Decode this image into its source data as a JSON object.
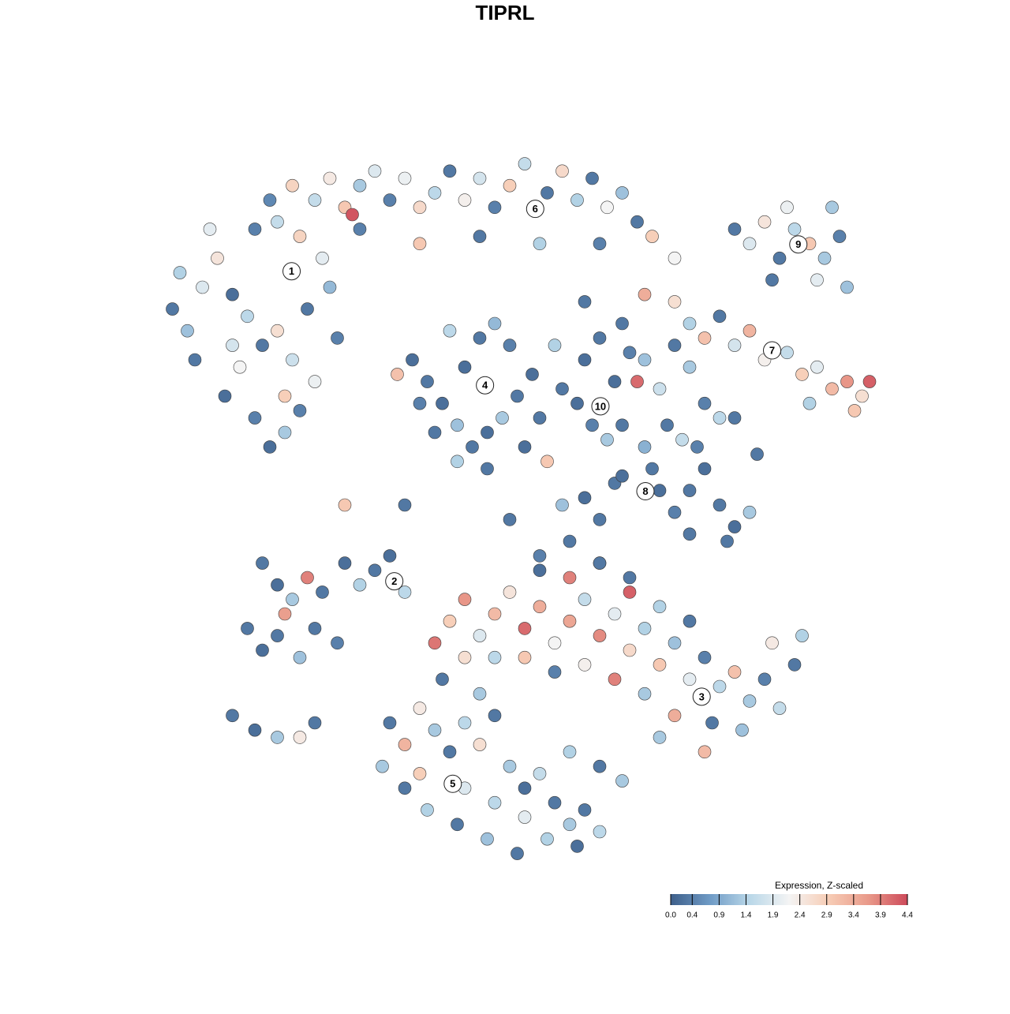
{
  "chart_data": {
    "type": "scatter",
    "title": "TIPRL",
    "xlim": [
      0,
      100
    ],
    "ylim": [
      0,
      100
    ],
    "edgecolor": "#3a3a3a",
    "points": [
      [
        5,
        74,
        1.2
      ],
      [
        3,
        77,
        0.3
      ],
      [
        7,
        80,
        1.9
      ],
      [
        9,
        84,
        2.5
      ],
      [
        11,
        79,
        0.2
      ],
      [
        13,
        76,
        1.5
      ],
      [
        15,
        72,
        0.3
      ],
      [
        12,
        69,
        2.2
      ],
      [
        10,
        65,
        0.2
      ],
      [
        14,
        62,
        0.4
      ],
      [
        16,
        58,
        0.2
      ],
      [
        18,
        60,
        1.3
      ],
      [
        20,
        63,
        0.4
      ],
      [
        22,
        67,
        2.1
      ],
      [
        19,
        70,
        1.7
      ],
      [
        17,
        74,
        2.6
      ],
      [
        21,
        77,
        0.3
      ],
      [
        24,
        80,
        1.1
      ],
      [
        23,
        84,
        2.0
      ],
      [
        20,
        87,
        2.8
      ],
      [
        17,
        89,
        1.6
      ],
      [
        14,
        88,
        0.4
      ],
      [
        8,
        88,
        2.0
      ],
      [
        4,
        82,
        1.4
      ],
      [
        6,
        70,
        0.3
      ],
      [
        25,
        73,
        0.4
      ],
      [
        18,
        65,
        2.9
      ],
      [
        11,
        72,
        1.8
      ],
      [
        16,
        92,
        0.5
      ],
      [
        19,
        94,
        2.8
      ],
      [
        22,
        92,
        1.6
      ],
      [
        24,
        95,
        2.4
      ],
      [
        26,
        91,
        3.0
      ],
      [
        28,
        94,
        1.3
      ],
      [
        30,
        96,
        1.9
      ],
      [
        32,
        92,
        0.4
      ],
      [
        34,
        95,
        2.1
      ],
      [
        36,
        91,
        2.7
      ],
      [
        38,
        93,
        1.5
      ],
      [
        40,
        96,
        0.3
      ],
      [
        42,
        92,
        2.3
      ],
      [
        44,
        95,
        1.8
      ],
      [
        46,
        91,
        0.4
      ],
      [
        48,
        94,
        2.9
      ],
      [
        50,
        97,
        1.6
      ],
      [
        53,
        93,
        0.3
      ],
      [
        55,
        96,
        2.7
      ],
      [
        57,
        92,
        1.4
      ],
      [
        59,
        95,
        0.3
      ],
      [
        61,
        91,
        2.2
      ],
      [
        63,
        93,
        1.2
      ],
      [
        65,
        89,
        0.3
      ],
      [
        67,
        87,
        2.9
      ],
      [
        28,
        88,
        0.4
      ],
      [
        36,
        86,
        3.0
      ],
      [
        44,
        87,
        0.3
      ],
      [
        52,
        86,
        1.4
      ],
      [
        60,
        86,
        0.4
      ],
      [
        27,
        90,
        4.3
      ],
      [
        78,
        88,
        0.3
      ],
      [
        80,
        86,
        1.9
      ],
      [
        82,
        89,
        2.5
      ],
      [
        84,
        84,
        0.3
      ],
      [
        86,
        88,
        1.5
      ],
      [
        88,
        86,
        3.0
      ],
      [
        90,
        84,
        1.3
      ],
      [
        92,
        87,
        0.4
      ],
      [
        89,
        81,
        2.0
      ],
      [
        83,
        81,
        0.3
      ],
      [
        93,
        80,
        1.2
      ],
      [
        85,
        91,
        2.1
      ],
      [
        91,
        91,
        1.3
      ],
      [
        70,
        78,
        2.6
      ],
      [
        72,
        75,
        1.4
      ],
      [
        74,
        73,
        3.1
      ],
      [
        76,
        76,
        0.3
      ],
      [
        78,
        72,
        1.8
      ],
      [
        80,
        74,
        3.3
      ],
      [
        82,
        70,
        2.3
      ],
      [
        85,
        71,
        1.6
      ],
      [
        87,
        68,
        2.9
      ],
      [
        89,
        69,
        2.0
      ],
      [
        91,
        66,
        3.2
      ],
      [
        93,
        67,
        3.7
      ],
      [
        95,
        65,
        2.6
      ],
      [
        96,
        67,
        4.2
      ],
      [
        94,
        63,
        3.0
      ],
      [
        88,
        64,
        1.4
      ],
      [
        70,
        72,
        0.3
      ],
      [
        72,
        69,
        1.3
      ],
      [
        74,
        64,
        0.4
      ],
      [
        76,
        62,
        1.5
      ],
      [
        78,
        62,
        0.3
      ],
      [
        68,
        66,
        1.7
      ],
      [
        71,
        59,
        1.6
      ],
      [
        66,
        79,
        3.4
      ],
      [
        35,
        70,
        0.2
      ],
      [
        37,
        67,
        0.3
      ],
      [
        39,
        64,
        0.2
      ],
      [
        41,
        61,
        1.2
      ],
      [
        43,
        58,
        0.3
      ],
      [
        45,
        60,
        0.2
      ],
      [
        47,
        62,
        1.3
      ],
      [
        49,
        65,
        0.3
      ],
      [
        51,
        68,
        0.2
      ],
      [
        48,
        72,
        0.4
      ],
      [
        46,
        75,
        1.1
      ],
      [
        44,
        73,
        0.3
      ],
      [
        42,
        69,
        0.2
      ],
      [
        40,
        74,
        1.5
      ],
      [
        38,
        60,
        0.3
      ],
      [
        45,
        55,
        0.3
      ],
      [
        41,
        56,
        1.4
      ],
      [
        50,
        58,
        0.2
      ],
      [
        36,
        64,
        0.4
      ],
      [
        33,
        68,
        3.1
      ],
      [
        52,
        62,
        0.3
      ],
      [
        55,
        66,
        0.3
      ],
      [
        57,
        64,
        0.2
      ],
      [
        59,
        61,
        0.4
      ],
      [
        61,
        59,
        1.3
      ],
      [
        63,
        61,
        0.3
      ],
      [
        62,
        67,
        0.2
      ],
      [
        64,
        71,
        0.4
      ],
      [
        66,
        70,
        1.2
      ],
      [
        63,
        75,
        0.3
      ],
      [
        58,
        70,
        0.2
      ],
      [
        54,
        72,
        1.4
      ],
      [
        60,
        73,
        0.3
      ],
      [
        65,
        67,
        4.1
      ],
      [
        66,
        58,
        1.0
      ],
      [
        67,
        55,
        0.3
      ],
      [
        68,
        52,
        0.2
      ],
      [
        70,
        49,
        0.4
      ],
      [
        72,
        52,
        0.3
      ],
      [
        74,
        55,
        0.2
      ],
      [
        76,
        50,
        0.3
      ],
      [
        78,
        47,
        0.2
      ],
      [
        80,
        49,
        1.3
      ],
      [
        77,
        45,
        0.3
      ],
      [
        72,
        46,
        0.3
      ],
      [
        62,
        53,
        0.3
      ],
      [
        58,
        51,
        0.2
      ],
      [
        55,
        50,
        1.2
      ],
      [
        60,
        48,
        0.3
      ],
      [
        63,
        54,
        0.2
      ],
      [
        69,
        61,
        0.3
      ],
      [
        73,
        58,
        0.4
      ],
      [
        81,
        57,
        0.3
      ],
      [
        56,
        45,
        0.3
      ],
      [
        52,
        41,
        0.2
      ],
      [
        60,
        42,
        1.4
      ],
      [
        64,
        40,
        0.3
      ],
      [
        15,
        42,
        0.3
      ],
      [
        17,
        39,
        0.2
      ],
      [
        19,
        37,
        1.3
      ],
      [
        21,
        40,
        3.9
      ],
      [
        23,
        38,
        0.3
      ],
      [
        26,
        42,
        0.2
      ],
      [
        28,
        39,
        1.4
      ],
      [
        30,
        41,
        0.3
      ],
      [
        32,
        43,
        0.2
      ],
      [
        34,
        38,
        1.5
      ],
      [
        13,
        33,
        0.3
      ],
      [
        15,
        30,
        0.2
      ],
      [
        17,
        32,
        0.3
      ],
      [
        20,
        29,
        1.2
      ],
      [
        22,
        33,
        0.3
      ],
      [
        25,
        31,
        0.4
      ],
      [
        11,
        21,
        0.3
      ],
      [
        14,
        19,
        0.2
      ],
      [
        17,
        18,
        1.3
      ],
      [
        20,
        18,
        2.4
      ],
      [
        22,
        20,
        0.3
      ],
      [
        18,
        35,
        3.6
      ],
      [
        40,
        34,
        2.9
      ],
      [
        42,
        37,
        3.7
      ],
      [
        44,
        32,
        1.9
      ],
      [
        46,
        35,
        3.2
      ],
      [
        48,
        38,
        2.5
      ],
      [
        50,
        33,
        4.1
      ],
      [
        52,
        36,
        3.4
      ],
      [
        54,
        31,
        2.2
      ],
      [
        56,
        34,
        3.5
      ],
      [
        58,
        37,
        1.6
      ],
      [
        60,
        32,
        3.8
      ],
      [
        62,
        35,
        2.0
      ],
      [
        64,
        30,
        2.7
      ],
      [
        66,
        33,
        1.4
      ],
      [
        68,
        28,
        3.0
      ],
      [
        70,
        31,
        1.2
      ],
      [
        72,
        26,
        2.0
      ],
      [
        74,
        29,
        0.4
      ],
      [
        76,
        25,
        1.5
      ],
      [
        78,
        27,
        3.1
      ],
      [
        80,
        23,
        1.3
      ],
      [
        82,
        26,
        0.4
      ],
      [
        84,
        22,
        1.6
      ],
      [
        86,
        28,
        0.3
      ],
      [
        87,
        32,
        1.4
      ],
      [
        83,
        31,
        2.4
      ],
      [
        79,
        19,
        1.2
      ],
      [
        75,
        20,
        0.3
      ],
      [
        70,
        21,
        3.4
      ],
      [
        66,
        24,
        1.3
      ],
      [
        62,
        26,
        3.9
      ],
      [
        58,
        28,
        2.3
      ],
      [
        54,
        27,
        0.4
      ],
      [
        50,
        29,
        3.0
      ],
      [
        46,
        29,
        1.5
      ],
      [
        42,
        29,
        2.6
      ],
      [
        38,
        31,
        4.0
      ],
      [
        56,
        40,
        3.9
      ],
      [
        64,
        38,
        4.2
      ],
      [
        60,
        42,
        0.3
      ],
      [
        52,
        43,
        0.4
      ],
      [
        68,
        36,
        1.4
      ],
      [
        72,
        34,
        0.3
      ],
      [
        74,
        16,
        3.2
      ],
      [
        68,
        18,
        1.3
      ],
      [
        32,
        20,
        0.3
      ],
      [
        34,
        17,
        3.3
      ],
      [
        36,
        22,
        2.4
      ],
      [
        38,
        19,
        1.3
      ],
      [
        40,
        16,
        0.3
      ],
      [
        42,
        20,
        1.5
      ],
      [
        44,
        17,
        2.6
      ],
      [
        46,
        21,
        0.3
      ],
      [
        48,
        14,
        1.3
      ],
      [
        50,
        11,
        0.2
      ],
      [
        52,
        13,
        1.6
      ],
      [
        54,
        9,
        0.3
      ],
      [
        56,
        6,
        1.3
      ],
      [
        58,
        8,
        0.3
      ],
      [
        60,
        5,
        1.5
      ],
      [
        57,
        3,
        0.2
      ],
      [
        53,
        4,
        1.4
      ],
      [
        49,
        2,
        0.3
      ],
      [
        45,
        4,
        1.2
      ],
      [
        41,
        6,
        0.3
      ],
      [
        37,
        8,
        1.4
      ],
      [
        34,
        11,
        0.3
      ],
      [
        31,
        14,
        1.3
      ],
      [
        36,
        13,
        2.9
      ],
      [
        42,
        11,
        1.9
      ],
      [
        46,
        9,
        1.5
      ],
      [
        50,
        7,
        2.0
      ],
      [
        44,
        24,
        1.3
      ],
      [
        39,
        26,
        0.3
      ],
      [
        56,
        16,
        1.4
      ],
      [
        60,
        14,
        0.3
      ],
      [
        63,
        12,
        1.3
      ],
      [
        26,
        50,
        3.0
      ],
      [
        34,
        50,
        0.3
      ],
      [
        53,
        56,
        3.0
      ],
      [
        48,
        48,
        0.3
      ],
      [
        70,
        84,
        2.2
      ],
      [
        58,
        78,
        0.3
      ]
    ],
    "clusters": {
      "labels": [
        "1",
        "2",
        "3",
        "4",
        "5",
        "6",
        "7",
        "8",
        "9",
        "10"
      ],
      "x": [
        18.9,
        32.6,
        73.6,
        44.7,
        40.4,
        51.4,
        83.0,
        66.1,
        86.5,
        60.1
      ],
      "y": [
        82.2,
        39.5,
        23.6,
        66.5,
        11.6,
        90.8,
        71.3,
        51.9,
        85.9,
        63.6
      ]
    },
    "colorbar": {
      "title": "Expression, Z-scaled",
      "clim": [
        0,
        4.4
      ],
      "colors": [
        "#3e5f8a",
        "#6f9bc6",
        "#b9d7e8",
        "#f4f4f4",
        "#f7cdb6",
        "#e99a8a",
        "#cd4a5a"
      ],
      "ticks": [
        {
          "value": 0,
          "label": "0.0"
        },
        0.4,
        0.9,
        1.4,
        1.9,
        2.4,
        2.9,
        3.4,
        3.9,
        4.4
      ]
    }
  }
}
